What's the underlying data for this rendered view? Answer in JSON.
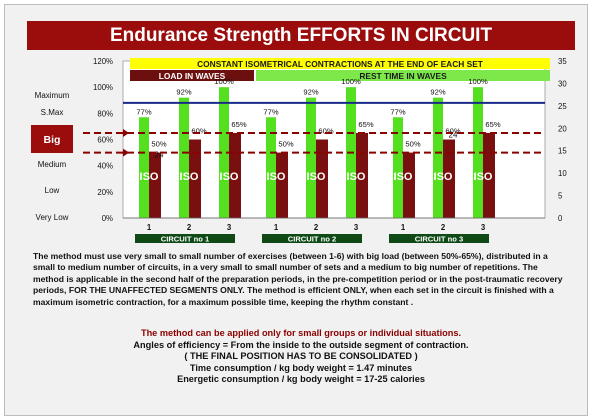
{
  "title": "Endurance Strength EFFORTS IN CIRCUIT",
  "colors": {
    "title_bg": "#9b0d0d",
    "yellow_band": "#ffff00",
    "load_band": "#6b0f0f",
    "rest_band": "#7ce84a",
    "green_bar": "#54e01e",
    "red_bar": "#7a0f0f",
    "big_box": "#9b0d0d",
    "circuit_box": "#0f4a16",
    "blue_line": "#1a2a8a",
    "dashed_line": "#8b0000"
  },
  "chart_data": {
    "type": "bar",
    "bands": {
      "constant": "CONSTANT ISOMETRICAL CONTRACTIONS AT THE END OF EACH  SET",
      "load": "LOAD IN WAVES",
      "rest": "REST TIME IN WAVES"
    },
    "left_axis": {
      "ticks": [
        "0%",
        "20%",
        "40%",
        "60%",
        "80%",
        "100%",
        "120%"
      ],
      "ylim": [
        0,
        120
      ]
    },
    "right_axis": {
      "ticks": [
        "0",
        "5",
        "10",
        "15",
        "20",
        "25",
        "30",
        "35"
      ],
      "ylim": [
        0,
        35
      ]
    },
    "intensity_labels": [
      "Maximum",
      "S.Max",
      "Big",
      "Medium",
      "Low",
      "Very Low"
    ],
    "bar_label": "ISO",
    "circuits": [
      {
        "name": "CIRCUIT no 1",
        "sets": [
          {
            "set": "1",
            "rest_pct": 77,
            "load_pct": 50,
            "load_label": "50%",
            "rest_label": "77%",
            "reps": "24"
          },
          {
            "set": "2",
            "rest_pct": 92,
            "load_pct": 60,
            "load_label": "60%",
            "rest_label": "92%",
            "reps": ""
          },
          {
            "set": "3",
            "rest_pct": 100,
            "load_pct": 65,
            "load_label": "65%",
            "rest_label": "100%",
            "reps": ""
          }
        ]
      },
      {
        "name": "CIRCUIT no 2",
        "sets": [
          {
            "set": "1",
            "rest_pct": 77,
            "load_pct": 50,
            "load_label": "50%",
            "rest_label": "77%",
            "reps": ""
          },
          {
            "set": "2",
            "rest_pct": 92,
            "load_pct": 60,
            "load_label": "60%",
            "rest_label": "92%",
            "reps": ""
          },
          {
            "set": "3",
            "rest_pct": 100,
            "load_pct": 65,
            "load_label": "65%",
            "rest_label": "100%",
            "reps": ""
          }
        ]
      },
      {
        "name": "CIRCUIT no 3",
        "sets": [
          {
            "set": "1",
            "rest_pct": 77,
            "load_pct": 50,
            "load_label": "50%",
            "rest_label": "77%",
            "reps": ""
          },
          {
            "set": "2",
            "rest_pct": 92,
            "load_pct": 60,
            "load_label": "60%",
            "rest_label": "92%",
            "reps": "24"
          },
          {
            "set": "3",
            "rest_pct": 100,
            "load_pct": 65,
            "load_label": "65%",
            "rest_label": "100%",
            "reps": ""
          }
        ]
      }
    ],
    "reference_lines": [
      {
        "style": "solid",
        "value_pct": 88
      },
      {
        "style": "dashed",
        "value_pct": 65
      },
      {
        "style": "dashed",
        "value_pct": 50
      }
    ]
  },
  "description": "The method must use very small to small number of exercises (between 1-6) with big load (between 50%-65%), distributed in a small to medium number of circuits, in a very small to small number of sets and a medium to big number of repetitions. The method is applicable in the second half of the preparation periods, in the pre-competition period or in the post-traumatic recovery periods, FOR THE UNAFFECTED SEGMENTS ONLY. The method is efficient ONLY, when each set in the circuit is finished with a maximum isometric contraction, for a maximum possible time, keeping the rhythm constant .",
  "warning": "The method can be applied only for small groups or individual situations.",
  "efficiency": "Angles of efficiency =  From the inside to the outside segment of contraction.",
  "final_position": "( THE FINAL POSITION HAS TO BE CONSOLIDATED )",
  "time_consumption": "Time consumption /  kg body weight =  1.47  minutes",
  "energetic_consumption": "Energetic consumption /  kg body weight =  17-25  calories"
}
